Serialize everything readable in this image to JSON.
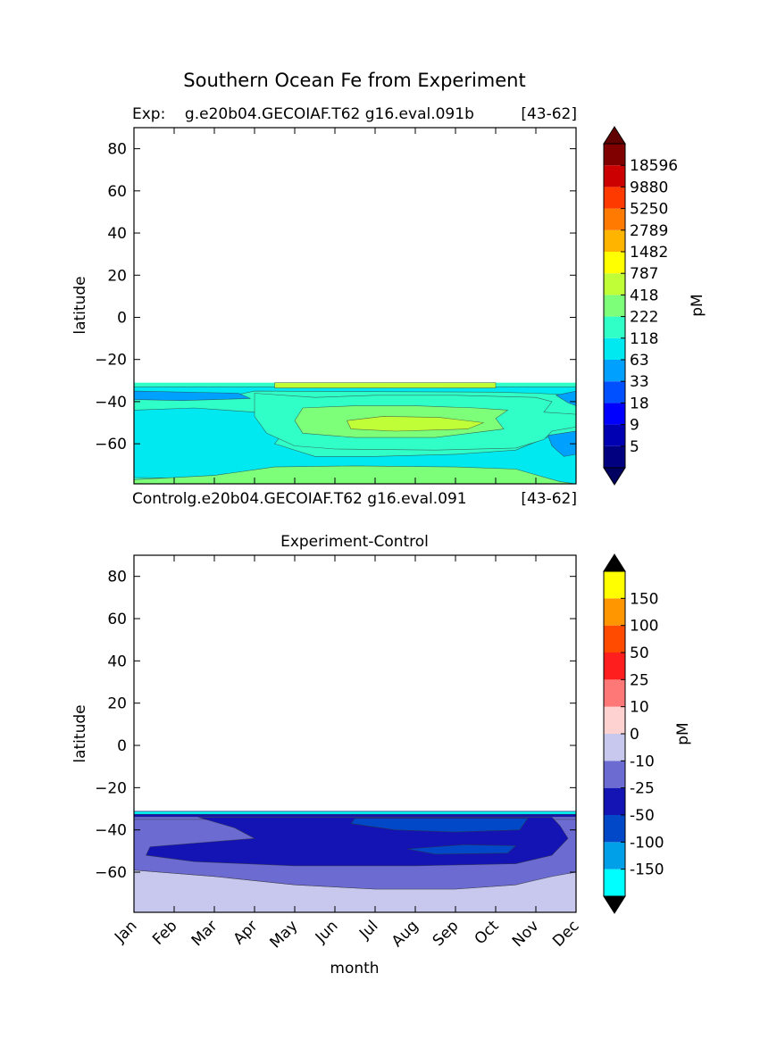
{
  "figure": {
    "title": "Southern Ocean Fe from Experiment"
  },
  "chart_data": [
    {
      "type": "heatmap",
      "panel": "top",
      "left_text": "Exp:    g.e20b04.GECOIAF.T62 g16.eval.091b",
      "right_text": "[43-62]",
      "xlabel": "",
      "ylabel": "latitude",
      "xlim": [
        0,
        11
      ],
      "ylim": [
        -79,
        90
      ],
      "yticks": [
        80,
        60,
        40,
        20,
        0,
        -20,
        -40,
        -60
      ],
      "ytick_labels": [
        "80",
        "60",
        "40",
        "20",
        "0",
        "−20",
        "−40",
        "−60"
      ],
      "data_lat_range": [
        -79,
        -31
      ],
      "colorbar": {
        "label": "pM",
        "tick_labels": [
          "5",
          "9",
          "18",
          "33",
          "63",
          "118",
          "222",
          "418",
          "787",
          "1482",
          "2789",
          "5250",
          "9880",
          "18596"
        ],
        "colors": [
          "#000080",
          "#0000b2",
          "#0000ff",
          "#0050ff",
          "#00a0ff",
          "#00e8f0",
          "#30ffc8",
          "#7dff7a",
          "#c0ff38",
          "#ffff00",
          "#ffb400",
          "#ff7a00",
          "#ff3a00",
          "#cc0000",
          "#800000"
        ],
        "under_color": "#000060",
        "over_color": "#600000"
      },
      "bands": [
        {
          "level": "63",
          "color": "#00a0ff",
          "poly": [
            [
              0,
              -79
            ],
            [
              0,
              -58
            ],
            [
              0.5,
              -61
            ],
            [
              1.2,
              -66
            ],
            [
              1,
              -72
            ],
            [
              0,
              -73
            ]
          ]
        },
        {
          "level": "118",
          "color": "#00e8f0",
          "poly": [
            [
              0,
              -76
            ],
            [
              0,
              -44
            ],
            [
              1.5,
              -43
            ],
            [
              3,
              -45
            ],
            [
              4,
              -48
            ],
            [
              3.5,
              -60
            ],
            [
              4.5,
              -66
            ],
            [
              6,
              -66
            ],
            [
              8,
              -65
            ],
            [
              9.5,
              -63
            ],
            [
              10.4,
              -56
            ],
            [
              11,
              -54
            ],
            [
              11,
              -79
            ]
          ]
        },
        {
          "level": "63",
          "color": "#00a0ff",
          "poly": [
            [
              10.3,
              -56
            ],
            [
              11,
              -54
            ],
            [
              11,
              -65
            ],
            [
              10.7,
              -66
            ],
            [
              10.4,
              -61
            ]
          ]
        },
        {
          "level": "222",
          "color": "#7dff7a",
          "poly": [
            [
              0,
              -79
            ],
            [
              0,
              -77
            ],
            [
              2,
              -75
            ],
            [
              3.5,
              -71
            ],
            [
              5.5,
              -70.5
            ],
            [
              8,
              -71
            ],
            [
              9.5,
              -72
            ],
            [
              10.6,
              -78
            ],
            [
              11,
              -79
            ]
          ]
        },
        {
          "level": "222",
          "color": "#30ffc8",
          "poly": [
            [
              3,
              -36
            ],
            [
              4.5,
              -38
            ],
            [
              6,
              -37
            ],
            [
              8,
              -37
            ],
            [
              10,
              -38
            ],
            [
              10.4,
              -40
            ],
            [
              10.2,
              -45
            ],
            [
              11,
              -46
            ],
            [
              11,
              -52
            ],
            [
              10.4,
              -54
            ],
            [
              10.2,
              -58
            ],
            [
              9.5,
              -62
            ],
            [
              7.5,
              -63
            ],
            [
              5,
              -62.5
            ],
            [
              4,
              -61
            ],
            [
              3.3,
              -55
            ],
            [
              3,
              -47
            ]
          ]
        },
        {
          "level": "418",
          "color": "#7dff7a",
          "poly": [
            [
              4.2,
              -43
            ],
            [
              5.5,
              -42
            ],
            [
              7,
              -42
            ],
            [
              8.5,
              -43
            ],
            [
              9.3,
              -44
            ],
            [
              9,
              -48
            ],
            [
              9.2,
              -53
            ],
            [
              7.5,
              -57
            ],
            [
              5.5,
              -57
            ],
            [
              4.2,
              -55
            ],
            [
              4,
              -49
            ]
          ]
        },
        {
          "level": "787",
          "color": "#c0ff38",
          "poly": [
            [
              5.3,
              -49
            ],
            [
              6.2,
              -47
            ],
            [
              7.6,
              -47.5
            ],
            [
              8.7,
              -50
            ],
            [
              8.3,
              -53
            ],
            [
              6.5,
              -54
            ],
            [
              5.4,
              -53
            ]
          ]
        },
        {
          "level": "118",
          "color": "#00e8f0",
          "poly": [
            [
              0,
              -33
            ],
            [
              11,
              -33
            ],
            [
              11,
              -37
            ],
            [
              10,
              -36
            ],
            [
              9,
              -35.5
            ],
            [
              3,
              -35
            ],
            [
              2.5,
              -37
            ],
            [
              1.5,
              -38
            ],
            [
              0,
              -38
            ]
          ]
        },
        {
          "level": "63",
          "color": "#00a0ff",
          "poly": [
            [
              0,
              -35
            ],
            [
              2.6,
              -36
            ],
            [
              2.9,
              -38.5
            ],
            [
              1.2,
              -39.5
            ],
            [
              0,
              -39
            ]
          ]
        },
        {
          "level": "63",
          "color": "#00a0ff",
          "poly": [
            [
              10.5,
              -37
            ],
            [
              11,
              -35
            ],
            [
              11,
              -42
            ],
            [
              10.8,
              -40.5
            ]
          ]
        },
        {
          "level": "787",
          "color": "#c0ff38",
          "poly": [
            [
              3.5,
              -31
            ],
            [
              9,
              -31
            ],
            [
              9,
              -33.5
            ],
            [
              3.5,
              -33.5
            ]
          ]
        }
      ],
      "background_color": "#30ffc8"
    },
    {
      "type": "heatmap",
      "panel": "bottom",
      "title": "Experiment-Control",
      "left_text": "Controlg.e20b04.GECOIAF.T62 g16.eval.091",
      "right_text": "[43-62]",
      "xlabel": "month",
      "ylabel": "latitude",
      "categories": [
        "Jan",
        "Feb",
        "Mar",
        "Apr",
        "May",
        "Jun",
        "Jul",
        "Aug",
        "Sep",
        "Oct",
        "Nov",
        "Dec"
      ],
      "xlim": [
        0,
        11
      ],
      "ylim": [
        -79,
        90
      ],
      "yticks": [
        80,
        60,
        40,
        20,
        0,
        -20,
        -40,
        -60
      ],
      "ytick_labels": [
        "80",
        "60",
        "40",
        "20",
        "0",
        "−20",
        "−40",
        "−60"
      ],
      "data_lat_range": [
        -79,
        -31
      ],
      "colorbar": {
        "label": "pM",
        "tick_labels": [
          "-150",
          "-100",
          "-50",
          "-25",
          "-10",
          "0",
          "10",
          "25",
          "50",
          "100",
          "150"
        ],
        "colors": [
          "#00ffff",
          "#00a0e8",
          "#0048c8",
          "#1414b4",
          "#6b6bd2",
          "#c8c8ee",
          "#ffd2d2",
          "#ff7878",
          "#ff1e1e",
          "#ff4b00",
          "#ff9600",
          "#ffff00"
        ],
        "under_color": "#000000",
        "over_color": "#000000"
      },
      "bands": [
        {
          "level": "-10",
          "color": "#c8c8ee",
          "poly": [
            [
              0,
              -79
            ],
            [
              0,
              -59
            ],
            [
              2,
              -62
            ],
            [
              4,
              -66
            ],
            [
              6,
              -68
            ],
            [
              8,
              -68
            ],
            [
              9.5,
              -66
            ],
            [
              10.3,
              -62
            ],
            [
              11,
              -60
            ],
            [
              11,
              -79
            ]
          ]
        },
        {
          "level": "-25",
          "color": "#6b6bd2",
          "poly": [
            [
              0,
              -59
            ],
            [
              0,
              -35
            ],
            [
              11,
              -35
            ],
            [
              11,
              -60
            ],
            [
              10.4,
              -62
            ],
            [
              9.5,
              -66
            ],
            [
              8,
              -68
            ],
            [
              6,
              -68
            ],
            [
              4,
              -66
            ],
            [
              2,
              -62
            ]
          ]
        },
        {
          "level": "-50",
          "color": "#1414b4",
          "poly": [
            [
              1.6,
              -34
            ],
            [
              10.4,
              -34
            ],
            [
              10.6,
              -38
            ],
            [
              10.8,
              -44
            ],
            [
              10.4,
              -52
            ],
            [
              9.5,
              -56
            ],
            [
              7,
              -57
            ],
            [
              4,
              -57
            ],
            [
              1.5,
              -55
            ],
            [
              0.3,
              -52
            ],
            [
              0.4,
              -48
            ],
            [
              3,
              -44
            ],
            [
              2.5,
              -39
            ]
          ]
        },
        {
          "level": "-100",
          "color": "#0048c8",
          "poly": [
            [
              5.5,
              -34.5
            ],
            [
              9.8,
              -34.5
            ],
            [
              9.6,
              -40
            ],
            [
              8,
              -41
            ],
            [
              6.5,
              -40
            ],
            [
              5.4,
              -37
            ]
          ]
        },
        {
          "level": "-100",
          "color": "#0048c8",
          "poly": [
            [
              6.8,
              -49
            ],
            [
              8.2,
              -47
            ],
            [
              9.5,
              -47.5
            ],
            [
              9.3,
              -51
            ],
            [
              7.5,
              -51.5
            ]
          ]
        },
        {
          "level": "-150",
          "color": "#00ffff",
          "poly": [
            [
              0,
              -31.3
            ],
            [
              11,
              -31.3
            ],
            [
              11,
              -32.6
            ],
            [
              0,
              -32.6
            ]
          ]
        },
        {
          "level": "-50",
          "color": "#1414b4",
          "poly": [
            [
              0,
              -32.6
            ],
            [
              11,
              -32.6
            ],
            [
              11,
              -33.8
            ],
            [
              0,
              -33.8
            ]
          ]
        }
      ],
      "background_color": "#6b6bd2"
    }
  ]
}
